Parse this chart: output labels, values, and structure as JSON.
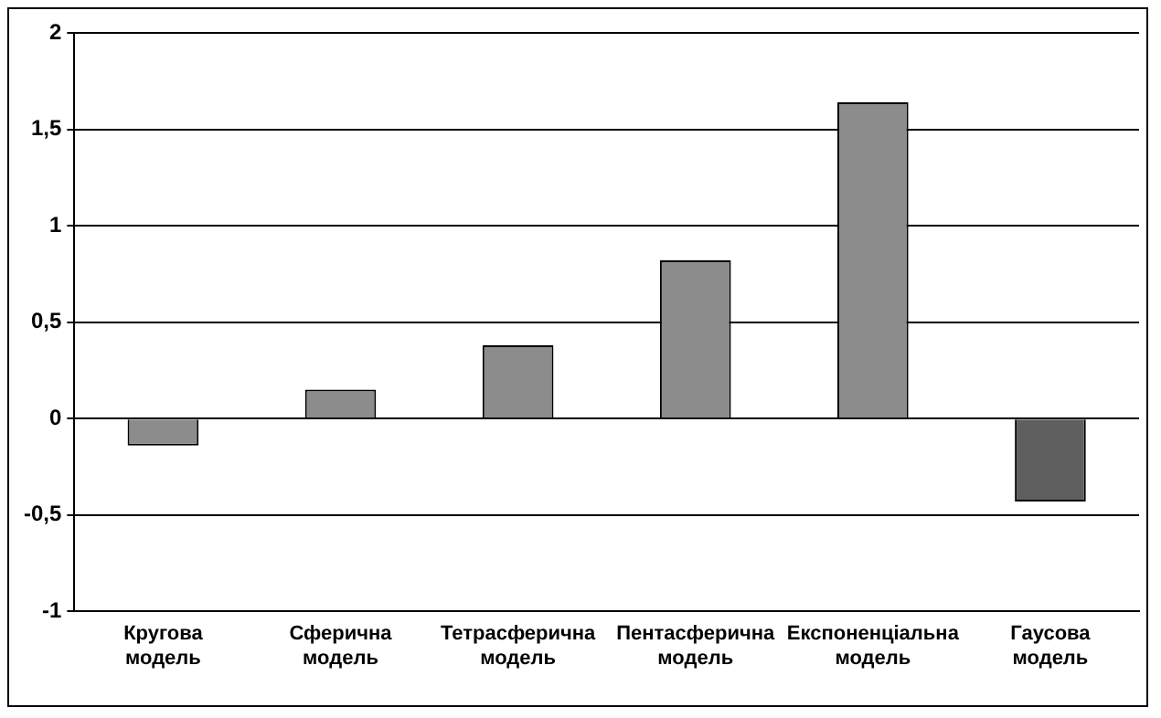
{
  "chart_data": {
    "type": "bar",
    "categories": [
      "Кругова модель",
      "Сферична модель",
      "Тетрасферична модель",
      "Пентасферична модель",
      "Експоненціальна модель",
      "Гаусова модель"
    ],
    "values": [
      -0.14,
      0.15,
      0.38,
      0.82,
      1.64,
      -0.43
    ],
    "colors": [
      "#8c8c8c",
      "#8c8c8c",
      "#8c8c8c",
      "#8c8c8c",
      "#8c8c8c",
      "#5f5f5f"
    ],
    "ylim": [
      -1,
      2
    ],
    "yticks": [
      -1,
      {
        "value": -0.5,
        "label": "-0,5"
      },
      0,
      {
        "value": 0.5,
        "label": "0,5"
      },
      1,
      {
        "value": 1.5,
        "label": "1,5"
      },
      2
    ],
    "grid": "y",
    "legend": false
  }
}
